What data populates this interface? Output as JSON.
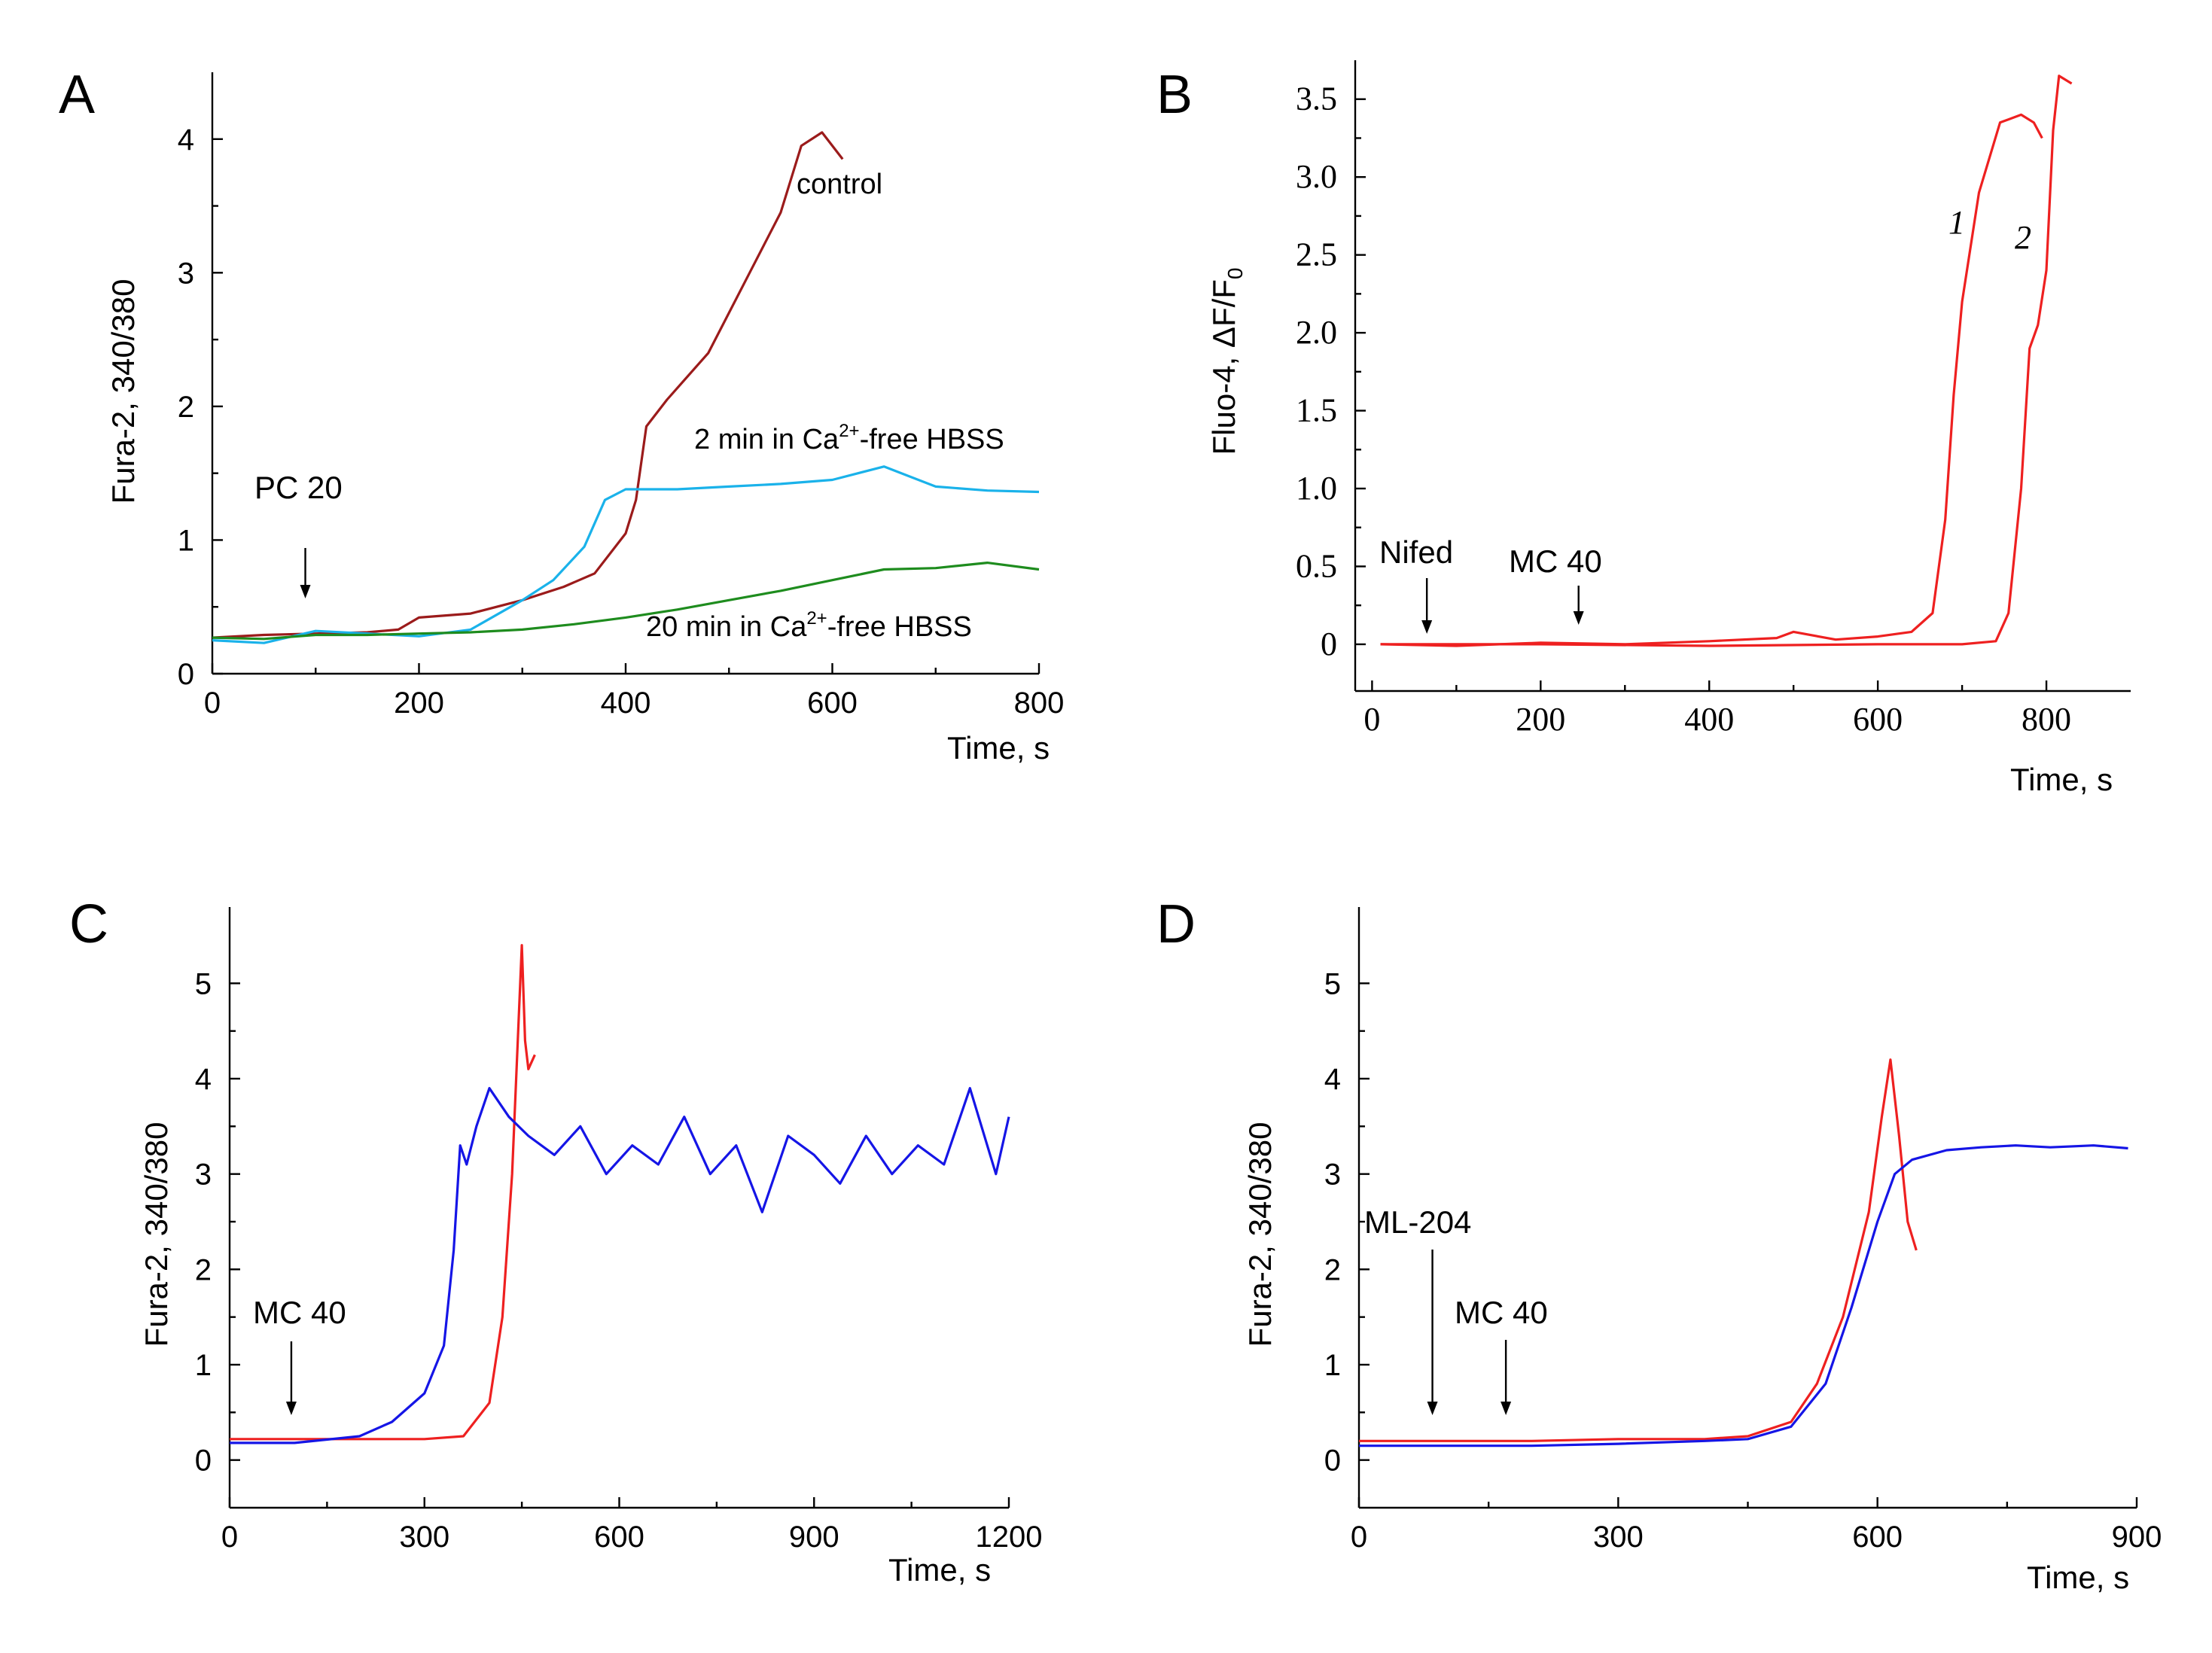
{
  "chart_data": [
    {
      "panel": "A",
      "type": "line",
      "ylabel": "Fura-2, 340/380",
      "xlabel": "Time, s",
      "xlim": [
        0,
        800
      ],
      "ylim": [
        0,
        4.5
      ],
      "xticks": [
        0,
        200,
        400,
        600,
        800
      ],
      "yticks": [
        0,
        1,
        2,
        3,
        4
      ],
      "annotations": [
        {
          "text": "PC 20",
          "x": 90
        }
      ],
      "series": [
        {
          "name": "control",
          "color": "#9b1b1b",
          "x": [
            0,
            50,
            100,
            150,
            180,
            200,
            250,
            300,
            340,
            370,
            400,
            410,
            420,
            440,
            480,
            520,
            550,
            570,
            590,
            610
          ],
          "y": [
            0.27,
            0.29,
            0.3,
            0.31,
            0.33,
            0.42,
            0.45,
            0.55,
            0.65,
            0.75,
            1.05,
            1.3,
            1.85,
            2.05,
            2.4,
            3.0,
            3.45,
            3.95,
            4.05,
            3.85
          ]
        },
        {
          "name": "2 min in Ca2+-free HBSS",
          "color": "#1ab2ea",
          "x": [
            0,
            50,
            100,
            150,
            200,
            250,
            300,
            330,
            360,
            380,
            400,
            450,
            500,
            550,
            600,
            650,
            700,
            750,
            800
          ],
          "y": [
            0.25,
            0.23,
            0.32,
            0.3,
            0.28,
            0.33,
            0.55,
            0.7,
            0.95,
            1.3,
            1.38,
            1.38,
            1.4,
            1.42,
            1.45,
            1.55,
            1.4,
            1.37,
            1.36
          ]
        },
        {
          "name": "20 min in Ca2+-free HBSS",
          "color": "#1e8c1e",
          "x": [
            0,
            50,
            100,
            150,
            200,
            250,
            300,
            350,
            400,
            450,
            500,
            550,
            600,
            650,
            700,
            750,
            800
          ],
          "y": [
            0.27,
            0.26,
            0.29,
            0.29,
            0.3,
            0.31,
            0.33,
            0.37,
            0.42,
            0.48,
            0.55,
            0.62,
            0.7,
            0.78,
            0.79,
            0.83,
            0.78
          ]
        }
      ],
      "labels": [
        "control",
        "2 min in Ca",
        "-free HBSS",
        "20 min in Ca",
        "-free HBSS"
      ],
      "superscript": "2+"
    },
    {
      "panel": "B",
      "type": "line",
      "ylabel": "Fluo-4, ΔF/F",
      "ylabel_sub": "0",
      "xlabel": "Time, s",
      "xlim": [
        -20,
        900
      ],
      "ylim": [
        -0.3,
        3.75
      ],
      "xticks": [
        0,
        200,
        400,
        600,
        800
      ],
      "yticks": [
        0,
        0.5,
        1.0,
        1.5,
        2.0,
        2.5,
        3.0,
        3.5
      ],
      "ytick_labels": [
        "0",
        "0.5",
        "1.0",
        "1.5",
        "2.0",
        "2.5",
        "3.0",
        "3.5"
      ],
      "annotations": [
        {
          "text": "Nifed",
          "x": 65
        },
        {
          "text": "MC 40",
          "x": 245
        }
      ],
      "series": [
        {
          "name": "1",
          "color": "#ee2020",
          "x": [
            10,
            100,
            200,
            300,
            400,
            480,
            500,
            550,
            600,
            640,
            665,
            680,
            690,
            700,
            720,
            745,
            770,
            785,
            795
          ],
          "y": [
            0,
            -0.01,
            0.01,
            0,
            0.02,
            0.04,
            0.08,
            0.03,
            0.05,
            0.08,
            0.2,
            0.8,
            1.6,
            2.2,
            2.9,
            3.35,
            3.4,
            3.35,
            3.25
          ]
        },
        {
          "name": "2",
          "color": "#ee2020",
          "x": [
            10,
            200,
            400,
            600,
            700,
            740,
            755,
            770,
            780,
            790,
            800,
            808,
            815,
            830
          ],
          "y": [
            0,
            0,
            -0.01,
            0,
            0,
            0.02,
            0.2,
            1.0,
            1.9,
            2.05,
            2.4,
            3.3,
            3.65,
            3.6
          ]
        }
      ],
      "labels": [
        "1",
        "2"
      ]
    },
    {
      "panel": "C",
      "type": "line",
      "ylabel": "Fura-2, 340/380",
      "xlabel": "Time, s",
      "xlim": [
        0,
        1200
      ],
      "ylim": [
        -0.5,
        5.8
      ],
      "xticks": [
        0,
        300,
        600,
        900,
        1200
      ],
      "yticks": [
        0,
        1,
        2,
        3,
        4,
        5
      ],
      "annotations": [
        {
          "text": "MC 40",
          "x": 95
        }
      ],
      "series": [
        {
          "name": "",
          "color": "#ee2020",
          "x": [
            0,
            100,
            200,
            300,
            360,
            400,
            420,
            435,
            445,
            450,
            455,
            460,
            470
          ],
          "y": [
            0.22,
            0.22,
            0.22,
            0.22,
            0.25,
            0.6,
            1.5,
            3.0,
            4.6,
            5.4,
            4.4,
            4.1,
            4.25
          ]
        },
        {
          "name": "",
          "color": "#1515e6",
          "x": [
            0,
            100,
            200,
            250,
            300,
            330,
            345,
            355,
            365,
            380,
            400,
            430,
            460,
            500,
            540,
            580,
            620,
            660,
            700,
            740,
            780,
            820,
            860,
            900,
            940,
            980,
            1020,
            1060,
            1100,
            1140,
            1180,
            1200
          ],
          "y": [
            0.18,
            0.18,
            0.25,
            0.4,
            0.7,
            1.2,
            2.2,
            3.3,
            3.1,
            3.5,
            3.9,
            3.6,
            3.4,
            3.2,
            3.5,
            3.0,
            3.3,
            3.1,
            3.6,
            3.0,
            3.3,
            2.6,
            3.4,
            3.2,
            2.9,
            3.4,
            3.0,
            3.3,
            3.1,
            3.9,
            3.0,
            3.6
          ]
        }
      ]
    },
    {
      "panel": "D",
      "type": "line",
      "ylabel": "Fura-2, 340/380",
      "xlabel": "Time, s",
      "xlim": [
        0,
        900
      ],
      "ylim": [
        -0.5,
        5.8
      ],
      "xticks": [
        0,
        300,
        600,
        900
      ],
      "yticks": [
        0,
        1,
        2,
        3,
        4,
        5
      ],
      "annotations": [
        {
          "text": "ML-204",
          "x": 85
        },
        {
          "text": "MC 40",
          "x": 170
        }
      ],
      "series": [
        {
          "name": "",
          "color": "#ee2020",
          "x": [
            0,
            100,
            200,
            300,
            400,
            450,
            500,
            530,
            560,
            590,
            605,
            615,
            625,
            635,
            645
          ],
          "y": [
            0.2,
            0.2,
            0.2,
            0.22,
            0.22,
            0.25,
            0.4,
            0.8,
            1.5,
            2.6,
            3.6,
            4.2,
            3.4,
            2.5,
            2.2
          ]
        },
        {
          "name": "",
          "color": "#1515e6",
          "x": [
            0,
            100,
            200,
            300,
            400,
            450,
            500,
            540,
            570,
            600,
            620,
            640,
            680,
            720,
            760,
            800,
            850,
            890
          ],
          "y": [
            0.15,
            0.15,
            0.15,
            0.17,
            0.2,
            0.22,
            0.35,
            0.8,
            1.6,
            2.5,
            3.0,
            3.15,
            3.25,
            3.28,
            3.3,
            3.28,
            3.3,
            3.27
          ]
        }
      ]
    }
  ],
  "panel_letters": [
    "A",
    "B",
    "C",
    "D"
  ]
}
